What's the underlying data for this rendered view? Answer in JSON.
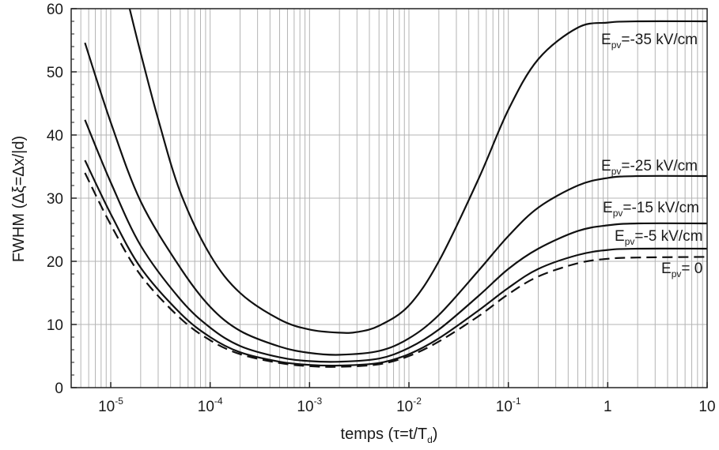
{
  "chart_data": {
    "type": "line",
    "xlabel": "temps (τ=t/T",
    "xlabel_sub": "d",
    "xlabel_end": ")",
    "ylabel": "FWHM (Δξ=Δx/|d)",
    "x_scale": "log",
    "xlim": [
      4e-06,
      10
    ],
    "ylim": [
      0,
      60
    ],
    "grid": true,
    "x_ticks": [
      {
        "value": 1e-05,
        "base": "10",
        "exp": "-5"
      },
      {
        "value": 0.0001,
        "base": "10",
        "exp": "-4"
      },
      {
        "value": 0.001,
        "base": "10",
        "exp": "-3"
      },
      {
        "value": 0.01,
        "base": "10",
        "exp": "-2"
      },
      {
        "value": 0.1,
        "base": "10",
        "exp": "-1"
      },
      {
        "value": 1,
        "base": "1",
        "exp": ""
      },
      {
        "value": 10,
        "base": "10",
        "exp": ""
      }
    ],
    "y_ticks": [
      0,
      10,
      20,
      30,
      40,
      50,
      60
    ],
    "series": [
      {
        "name": "E_pv=-35 kV/cm",
        "label_main": "E",
        "label_sub": "pv",
        "label_rest": "=-35 kV/cm",
        "dashed": false,
        "points": [
          [
            1.55e-05,
            60
          ],
          [
            2e-05,
            53
          ],
          [
            3e-05,
            42.5
          ],
          [
            5e-05,
            31
          ],
          [
            0.0001,
            21
          ],
          [
            0.0002,
            15
          ],
          [
            0.0005,
            10.8
          ],
          [
            0.001,
            9.2
          ],
          [
            0.002,
            8.7
          ],
          [
            0.003,
            8.8
          ],
          [
            0.005,
            9.8
          ],
          [
            0.01,
            13
          ],
          [
            0.02,
            20
          ],
          [
            0.05,
            33
          ],
          [
            0.1,
            44
          ],
          [
            0.2,
            52
          ],
          [
            0.5,
            57
          ],
          [
            1,
            57.8
          ],
          [
            2,
            58
          ],
          [
            10,
            58
          ]
        ]
      },
      {
        "name": "E_pv=-25 kV/cm",
        "label_main": "E",
        "label_sub": "pv",
        "label_rest": "=-25 kV/cm",
        "dashed": false,
        "points": [
          [
            5.5e-06,
            54.6
          ],
          [
            1e-05,
            42
          ],
          [
            2e-05,
            29.5
          ],
          [
            5e-05,
            19
          ],
          [
            0.0001,
            12.8
          ],
          [
            0.0002,
            9
          ],
          [
            0.0005,
            6.5
          ],
          [
            0.001,
            5.5
          ],
          [
            0.002,
            5.2
          ],
          [
            0.005,
            5.8
          ],
          [
            0.01,
            7.8
          ],
          [
            0.02,
            11.5
          ],
          [
            0.05,
            18.5
          ],
          [
            0.1,
            24
          ],
          [
            0.2,
            28.5
          ],
          [
            0.5,
            32
          ],
          [
            1,
            33.2
          ],
          [
            2,
            33.5
          ],
          [
            10,
            33.5
          ]
        ]
      },
      {
        "name": "E_pv=-15 kV/cm",
        "label_main": "E",
        "label_sub": "pv",
        "label_rest": "=-15 kV/cm",
        "dashed": false,
        "points": [
          [
            5.5e-06,
            42.4
          ],
          [
            1e-05,
            32.5
          ],
          [
            2e-05,
            22.5
          ],
          [
            5e-05,
            14
          ],
          [
            0.0001,
            9.5
          ],
          [
            0.0002,
            6.6
          ],
          [
            0.0005,
            4.8
          ],
          [
            0.001,
            4.2
          ],
          [
            0.002,
            4.1
          ],
          [
            0.005,
            4.6
          ],
          [
            0.01,
            6.3
          ],
          [
            0.02,
            9.2
          ],
          [
            0.05,
            14.5
          ],
          [
            0.1,
            18.8
          ],
          [
            0.2,
            22
          ],
          [
            0.5,
            24.8
          ],
          [
            1,
            25.7
          ],
          [
            2,
            26
          ],
          [
            10,
            26
          ]
        ]
      },
      {
        "name": "E_pv=-5 kV/cm",
        "label_main": "E",
        "label_sub": "pv",
        "label_rest": "=-5 kV/cm",
        "dashed": false,
        "points": [
          [
            5.5e-06,
            36
          ],
          [
            1e-05,
            27.5
          ],
          [
            2e-05,
            19
          ],
          [
            5e-05,
            11.8
          ],
          [
            0.0001,
            8
          ],
          [
            0.0002,
            5.6
          ],
          [
            0.0005,
            4.1
          ],
          [
            0.001,
            3.6
          ],
          [
            0.002,
            3.5
          ],
          [
            0.005,
            3.9
          ],
          [
            0.01,
            5.3
          ],
          [
            0.02,
            7.8
          ],
          [
            0.05,
            12.2
          ],
          [
            0.1,
            15.8
          ],
          [
            0.2,
            18.8
          ],
          [
            0.5,
            21
          ],
          [
            1,
            21.8
          ],
          [
            2,
            22
          ],
          [
            10,
            22
          ]
        ]
      },
      {
        "name": "E_pv= 0",
        "label_main": "E",
        "label_sub": "pv",
        "label_rest": "= 0",
        "dashed": true,
        "points": [
          [
            5.5e-06,
            34
          ],
          [
            1e-05,
            25.8
          ],
          [
            2e-05,
            17.8
          ],
          [
            5e-05,
            11
          ],
          [
            0.0001,
            7.5
          ],
          [
            0.0002,
            5.3
          ],
          [
            0.0005,
            3.9
          ],
          [
            0.001,
            3.4
          ],
          [
            0.002,
            3.3
          ],
          [
            0.005,
            3.7
          ],
          [
            0.01,
            5
          ],
          [
            0.02,
            7.3
          ],
          [
            0.05,
            11.3
          ],
          [
            0.1,
            14.8
          ],
          [
            0.2,
            17.6
          ],
          [
            0.5,
            19.7
          ],
          [
            1,
            20.4
          ],
          [
            2,
            20.6
          ],
          [
            10,
            20.7
          ]
        ]
      }
    ]
  }
}
